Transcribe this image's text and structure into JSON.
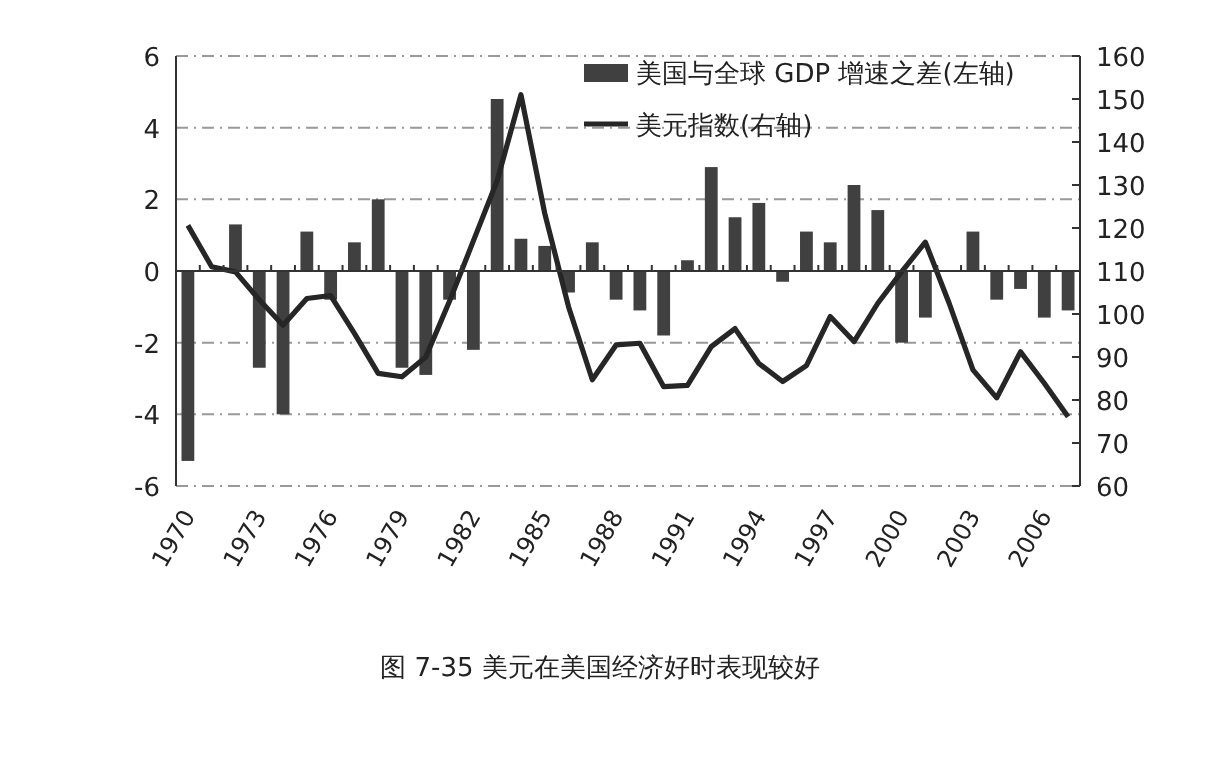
{
  "chart_data": {
    "type": "bar",
    "title": "图 7-35   美元在美国经济好时表现较好",
    "categories": [
      "1970",
      null,
      null,
      "1973",
      null,
      null,
      "1976",
      null,
      null,
      "1979",
      null,
      null,
      "1982",
      null,
      null,
      "1985",
      null,
      null,
      "1988",
      null,
      null,
      "1991",
      null,
      null,
      "1994",
      null,
      null,
      "1997",
      null,
      null,
      "2000",
      null,
      null,
      "2003",
      null,
      null,
      "2006",
      null
    ],
    "series": [
      {
        "name": "美国与全球 GDP 增速之差(左轴)",
        "color": "#404040",
        "values": [
          -5.3,
          0,
          1.3,
          -2.7,
          -4.0,
          1.1,
          -0.8,
          0.8,
          2.0,
          -2.7,
          -2.9,
          -0.8,
          -2.2,
          4.8,
          0.9,
          0.7,
          -0.6,
          0.8,
          -0.8,
          -1.1,
          -1.8,
          0.3,
          2.9,
          1.5,
          1.9,
          -0.3,
          1.1,
          0.8,
          2.4,
          1.7,
          -2.0,
          -1.3,
          0,
          1.1,
          -0.8,
          -0.5,
          -1.3,
          -1.1
        ]
      },
      {
        "name": "美元指数(右轴)",
        "type": "line",
        "axis": "y2",
        "color": "#262626",
        "values": [
          120.6,
          111,
          109.8,
          103.3,
          97.4,
          103.6,
          104.3,
          95.5,
          86.2,
          85.4,
          90,
          103,
          117,
          131,
          151,
          123.4,
          101.7,
          84.7,
          92.8,
          93.2,
          83.1,
          83.4,
          92.4,
          96.6,
          88.5,
          84.3,
          88,
          99.4,
          93.6,
          102.5,
          109.8,
          116.7,
          102.5,
          87,
          80.5,
          91.2,
          83.9,
          76.1
        ]
      }
    ],
    "ylim": [
      -6,
      6
    ],
    "yticks": [
      -6,
      -4,
      -2,
      0,
      2,
      4,
      6
    ],
    "y2lim": [
      60,
      160
    ],
    "y2ticks": [
      60,
      70,
      80,
      90,
      100,
      110,
      120,
      130,
      140,
      150,
      160
    ],
    "grid": "y",
    "legend": "top right"
  }
}
